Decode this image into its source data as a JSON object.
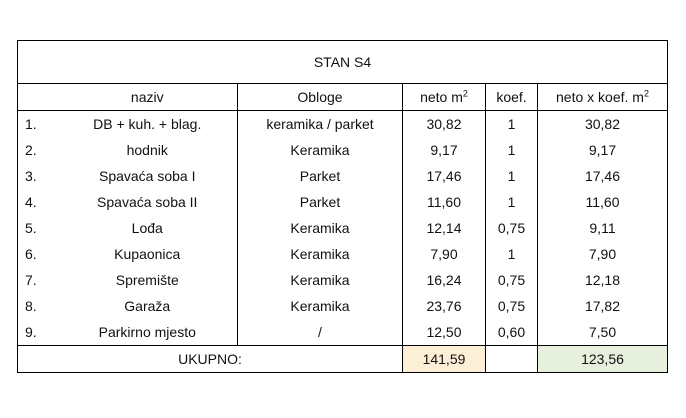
{
  "table": {
    "title": "STAN S4",
    "headers": {
      "naziv": "naziv",
      "obloge": "Obloge",
      "neto": "neto m",
      "neto_sup": "2",
      "koef": "koef.",
      "neto_koef": "neto x koef. m",
      "neto_koef_sup": "2"
    },
    "rows": [
      {
        "num": "1.",
        "naziv": "DB + kuh. + blag.",
        "obloge": "keramika / parket",
        "neto": "30,82",
        "koef": "1",
        "neto_koef": "30,82"
      },
      {
        "num": "2.",
        "naziv": "hodnik",
        "obloge": "Keramika",
        "neto": "9,17",
        "koef": "1",
        "neto_koef": "9,17"
      },
      {
        "num": "3.",
        "naziv": "Spavaća soba I",
        "obloge": "Parket",
        "neto": "17,46",
        "koef": "1",
        "neto_koef": "17,46"
      },
      {
        "num": "4.",
        "naziv": "Spavaća soba II",
        "obloge": "Parket",
        "neto": "11,60",
        "koef": "1",
        "neto_koef": "11,60"
      },
      {
        "num": "5.",
        "naziv": "Lođa",
        "obloge": "Keramika",
        "neto": "12,14",
        "koef": "0,75",
        "neto_koef": "9,11"
      },
      {
        "num": "6.",
        "naziv": "Kupaonica",
        "obloge": "Keramika",
        "neto": "7,90",
        "koef": "1",
        "neto_koef": "7,90"
      },
      {
        "num": "7.",
        "naziv": "Spremište",
        "obloge": "Keramika",
        "neto": "16,24",
        "koef": "0,75",
        "neto_koef": "12,18"
      },
      {
        "num": "8.",
        "naziv": "Garaža",
        "obloge": "Keramika",
        "neto": "23,76",
        "koef": "0,75",
        "neto_koef": "17,82"
      },
      {
        "num": "9.",
        "naziv": "Parkirno mjesto",
        "obloge": "/",
        "neto": "12,50",
        "koef": "0,60",
        "neto_koef": "7,50"
      }
    ],
    "total": {
      "label": "UKUPNO:",
      "neto": "141,59",
      "neto_koef": "123,56"
    }
  },
  "colors": {
    "total_neto_bg": "#fdeed6",
    "total_final_bg": "#e6f0dc"
  }
}
